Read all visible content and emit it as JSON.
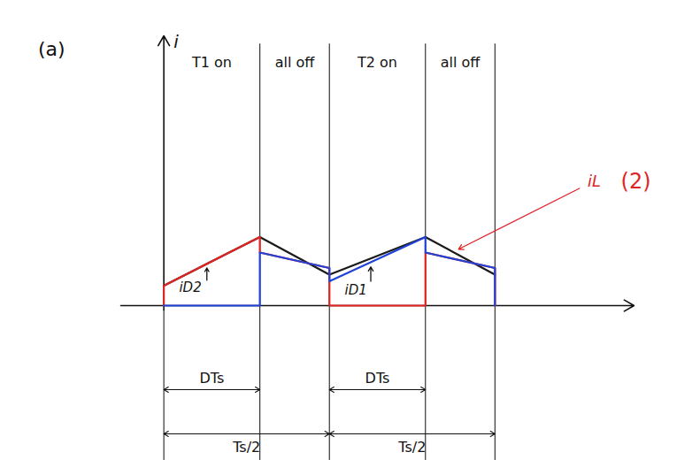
{
  "chart_data": {
    "type": "line",
    "title": "(a)",
    "y_label": "i",
    "xlim": [
      -0.13,
      1.42
    ],
    "ylim": [
      -0.2,
      12.2
    ],
    "tick_labels": false,
    "grid": false,
    "series": [
      {
        "name": "iL",
        "color": "#1a1a1a",
        "x": [
          0,
          0.29,
          0.5,
          0.79,
          1.0
        ],
        "values": [
          0.9,
          3.1,
          1.4,
          3.1,
          1.4
        ]
      },
      {
        "name": "iD2",
        "color": "#e02424",
        "x": [
          0,
          0,
          0.29,
          0.29,
          0.5,
          0.5,
          0.79,
          0.79,
          1.0,
          1.0
        ],
        "values": [
          0,
          0.9,
          3.1,
          2.4,
          1.7,
          0,
          0,
          2.4,
          1.7,
          0
        ]
      },
      {
        "name": "iD1",
        "color": "#2142d6",
        "x": [
          0,
          0.29,
          0.29,
          0.5,
          0.5,
          0.79,
          0.79,
          1.0,
          1.0
        ],
        "values": [
          0,
          0,
          2.4,
          1.7,
          1.1,
          3.1,
          2.4,
          1.7,
          0
        ]
      }
    ],
    "intervals": [
      {
        "label": "T1 on",
        "from": 0,
        "to": 0.29
      },
      {
        "label": "all off",
        "from": 0.29,
        "to": 0.5
      },
      {
        "label": "T2 on",
        "from": 0.5,
        "to": 0.79
      },
      {
        "label": "all off",
        "from": 0.79,
        "to": 1.0
      }
    ],
    "dimensions": [
      {
        "label": "DTs",
        "from": 0,
        "to": 0.29
      },
      {
        "label": "DTs",
        "from": 0.5,
        "to": 0.79
      },
      {
        "label": "Ts/2",
        "from": 0,
        "to": 0.5
      },
      {
        "label": "Ts/2",
        "from": 0.5,
        "to": 1.0
      }
    ],
    "annotations": [
      {
        "text": "(2)",
        "color": "#e02424"
      }
    ]
  }
}
